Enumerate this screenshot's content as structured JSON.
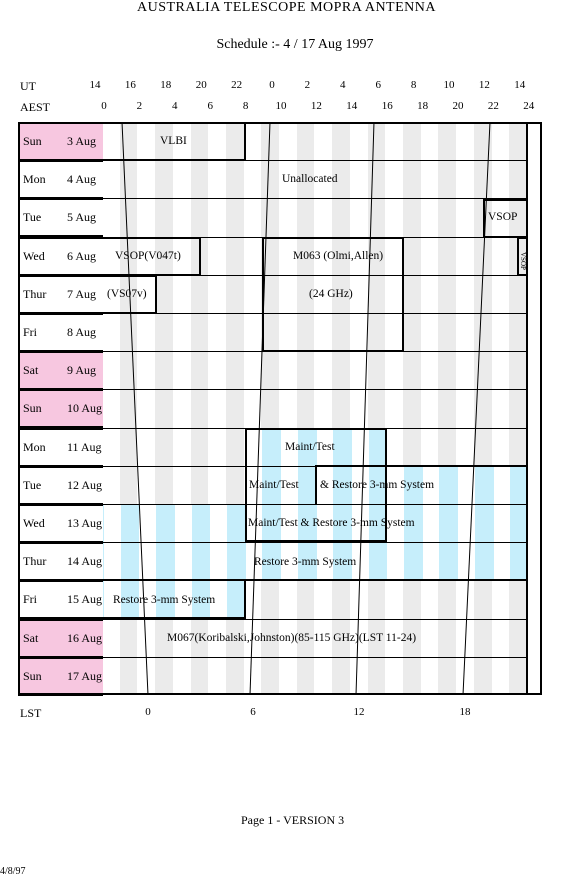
{
  "title": "AUSTRALIA TELESCOPE MOPRA ANTENNA",
  "subtitle": "Schedule :- 4 / 17 Aug 1997",
  "axes": {
    "ut_label": "UT",
    "aest_label": "AEST",
    "lst_label": "LST",
    "ut_ticks": [
      "14",
      "16",
      "18",
      "20",
      "22",
      "0",
      "2",
      "4",
      "6",
      "8",
      "10",
      "12",
      "14"
    ],
    "aest_ticks": [
      "0",
      "2",
      "4",
      "6",
      "8",
      "10",
      "12",
      "14",
      "16",
      "18",
      "20",
      "22",
      "24"
    ],
    "lst_ticks": [
      "0",
      "6",
      "12",
      "18"
    ]
  },
  "days": [
    {
      "name": "Sun",
      "date": "3  Aug",
      "weekend": true
    },
    {
      "name": "Mon",
      "date": "4  Aug",
      "weekend": false
    },
    {
      "name": "Tue",
      "date": "5  Aug",
      "weekend": false
    },
    {
      "name": "Wed",
      "date": "6  Aug",
      "weekend": false
    },
    {
      "name": "Thur",
      "date": "7  Aug",
      "weekend": false
    },
    {
      "name": "Fri",
      "date": "8  Aug",
      "weekend": false
    },
    {
      "name": "Sat",
      "date": "9  Aug",
      "weekend": true
    },
    {
      "name": "Sun",
      "date": "10  Aug",
      "weekend": true
    },
    {
      "name": "Mon",
      "date": "11  Aug",
      "weekend": false
    },
    {
      "name": "Tue",
      "date": "12  Aug",
      "weekend": false
    },
    {
      "name": "Wed",
      "date": "13  Aug",
      "weekend": false
    },
    {
      "name": "Thur",
      "date": "14  Aug",
      "weekend": false
    },
    {
      "name": "Fri",
      "date": "15  Aug",
      "weekend": false
    },
    {
      "name": "Sat",
      "date": "16  Aug",
      "weekend": true
    },
    {
      "name": "Sun",
      "date": "17  Aug",
      "weekend": true
    }
  ],
  "blocks": {
    "vlbi": "VLBI",
    "unallocated": "Unallocated",
    "vsop_tue": "VSOP",
    "vsop_wed_start": "VSOP(V047t)",
    "m063": "M063 (Olmi,Allen)",
    "m063_freq": "(24 GHz)",
    "vsop_wed_end": "VSOP",
    "vs07v": "(VS07v)",
    "maint_mon": "Maint/Test",
    "maint_tue": "Maint/Test",
    "restore_tue": "& Restore  3-mm System",
    "maint_restore_wed": "Maint/Test  &  Restore  3-mm System",
    "restore_thu": "Restore 3-mm System",
    "restore_fri": "Restore 3-mm System",
    "m067": "M067(Koribalski,Johnston)(85-115 GHz)(LST 11-24)"
  },
  "footer": {
    "page": "Page 1 - VERSION 3",
    "date": "4/8/97"
  },
  "colors": {
    "weekend": "#f7c7e0",
    "stripe": "#ebebeb",
    "maintenance": "#c6eefb"
  }
}
